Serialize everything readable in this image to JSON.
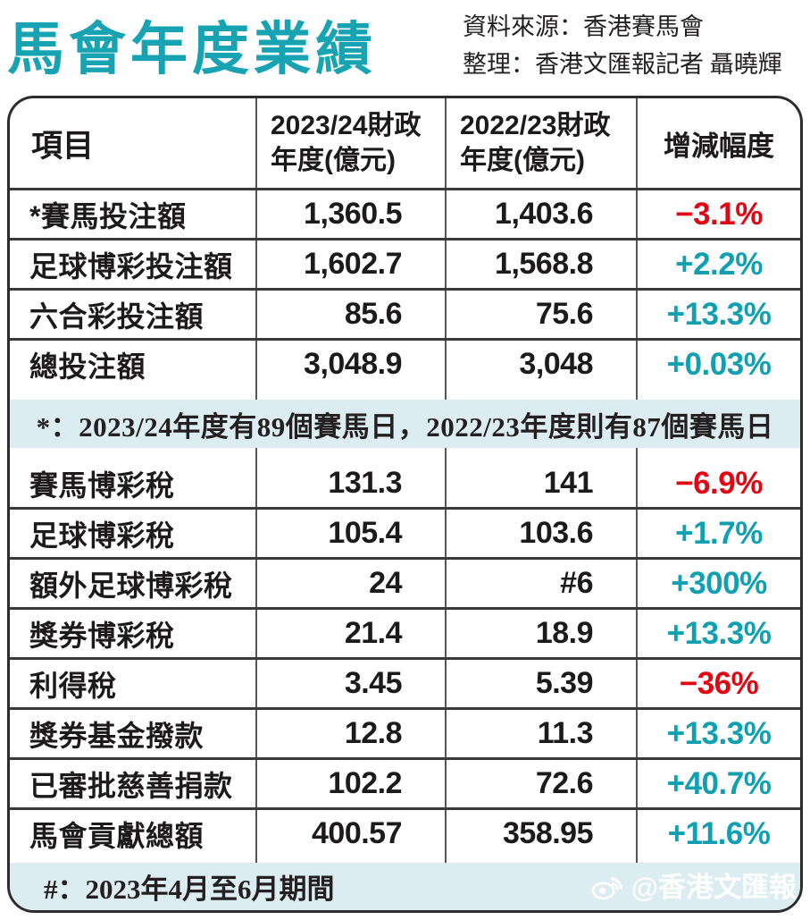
{
  "header": {
    "title": "馬會年度業績",
    "source": "資料來源：香港賽馬會",
    "compiled_by": "整理：香港文匯報記者 聶曉輝"
  },
  "table_header": {
    "col1": "項目",
    "col2_line1": "2023/24財政",
    "col2_line2": "年度(億元)",
    "col3_line1": "2022/23財政",
    "col3_line2": "年度(億元)",
    "col4": "增減幅度"
  },
  "watermark": {
    "icon": "weibo-icon",
    "handle": "@香港文匯報"
  },
  "colors": {
    "title_teal": "#17a3b2",
    "positive_teal": "#10a0b2",
    "negative_red": "#e20613",
    "note_band_bg": "#dcedf1",
    "text": "#1d1a1b"
  },
  "chart_data": {
    "type": "table",
    "title": "馬會年度業績",
    "unit": "億元",
    "columns": [
      "項目",
      "2023/24財政年度(億元)",
      "2022/23財政年度(億元)",
      "增減幅度"
    ],
    "sections": [
      {
        "rows": [
          {
            "item": "*賽馬投注額",
            "y2024": "1,360.5",
            "y2023": "1,403.6",
            "change": "−3.1%",
            "direction": "down",
            "value_2023_24": 1360.5,
            "value_2022_23": 1403.6,
            "change_pct": -3.1
          },
          {
            "item": "足球博彩投注額",
            "y2024": "1,602.7",
            "y2023": "1,568.8",
            "change": "+2.2%",
            "direction": "up",
            "value_2023_24": 1602.7,
            "value_2022_23": 1568.8,
            "change_pct": 2.2
          },
          {
            "item": "六合彩投注額",
            "y2024": "85.6",
            "y2023": "75.6",
            "change": "+13.3%",
            "direction": "up",
            "value_2023_24": 85.6,
            "value_2022_23": 75.6,
            "change_pct": 13.3
          },
          {
            "item": "總投注額",
            "y2024": "3,048.9",
            "y2023": "3,048",
            "change": "+0.03%",
            "direction": "up",
            "value_2023_24": 3048.9,
            "value_2022_23": 3048,
            "change_pct": 0.03
          }
        ],
        "footnote": "*：2023/24年度有89個賽馬日，2022/23年度則有87個賽馬日"
      },
      {
        "rows": [
          {
            "item": "賽馬博彩稅",
            "y2024": "131.3",
            "y2023": "141",
            "change": "−6.9%",
            "direction": "down",
            "value_2023_24": 131.3,
            "value_2022_23": 141,
            "change_pct": -6.9
          },
          {
            "item": "足球博彩稅",
            "y2024": "105.4",
            "y2023": "103.6",
            "change": "+1.7%",
            "direction": "up",
            "value_2023_24": 105.4,
            "value_2022_23": 103.6,
            "change_pct": 1.7
          },
          {
            "item": "額外足球博彩稅",
            "y2024": "24",
            "y2023": "#6",
            "change": "+300%",
            "direction": "up",
            "value_2023_24": 24,
            "value_2022_23": 6,
            "change_pct": 300
          },
          {
            "item": "獎券博彩稅",
            "y2024": "21.4",
            "y2023": "18.9",
            "change": "+13.3%",
            "direction": "up",
            "value_2023_24": 21.4,
            "value_2022_23": 18.9,
            "change_pct": 13.3
          },
          {
            "item": "利得稅",
            "y2024": "3.45",
            "y2023": "5.39",
            "change": "−36%",
            "direction": "down",
            "value_2023_24": 3.45,
            "value_2022_23": 5.39,
            "change_pct": -36
          },
          {
            "item": "獎券基金撥款",
            "y2024": "12.8",
            "y2023": "11.3",
            "change": "+13.3%",
            "direction": "up",
            "value_2023_24": 12.8,
            "value_2022_23": 11.3,
            "change_pct": 13.3
          },
          {
            "item": "已審批慈善捐款",
            "y2024": "102.2",
            "y2023": "72.6",
            "change": "+40.7%",
            "direction": "up",
            "value_2023_24": 102.2,
            "value_2022_23": 72.6,
            "change_pct": 40.7
          },
          {
            "item": "馬會貢獻總額",
            "y2024": "400.57",
            "y2023": "358.95",
            "change": "+11.6%",
            "direction": "up",
            "value_2023_24": 400.57,
            "value_2022_23": 358.95,
            "change_pct": 11.6
          }
        ],
        "footnote": "#：2023年4月至6月期間"
      }
    ]
  }
}
